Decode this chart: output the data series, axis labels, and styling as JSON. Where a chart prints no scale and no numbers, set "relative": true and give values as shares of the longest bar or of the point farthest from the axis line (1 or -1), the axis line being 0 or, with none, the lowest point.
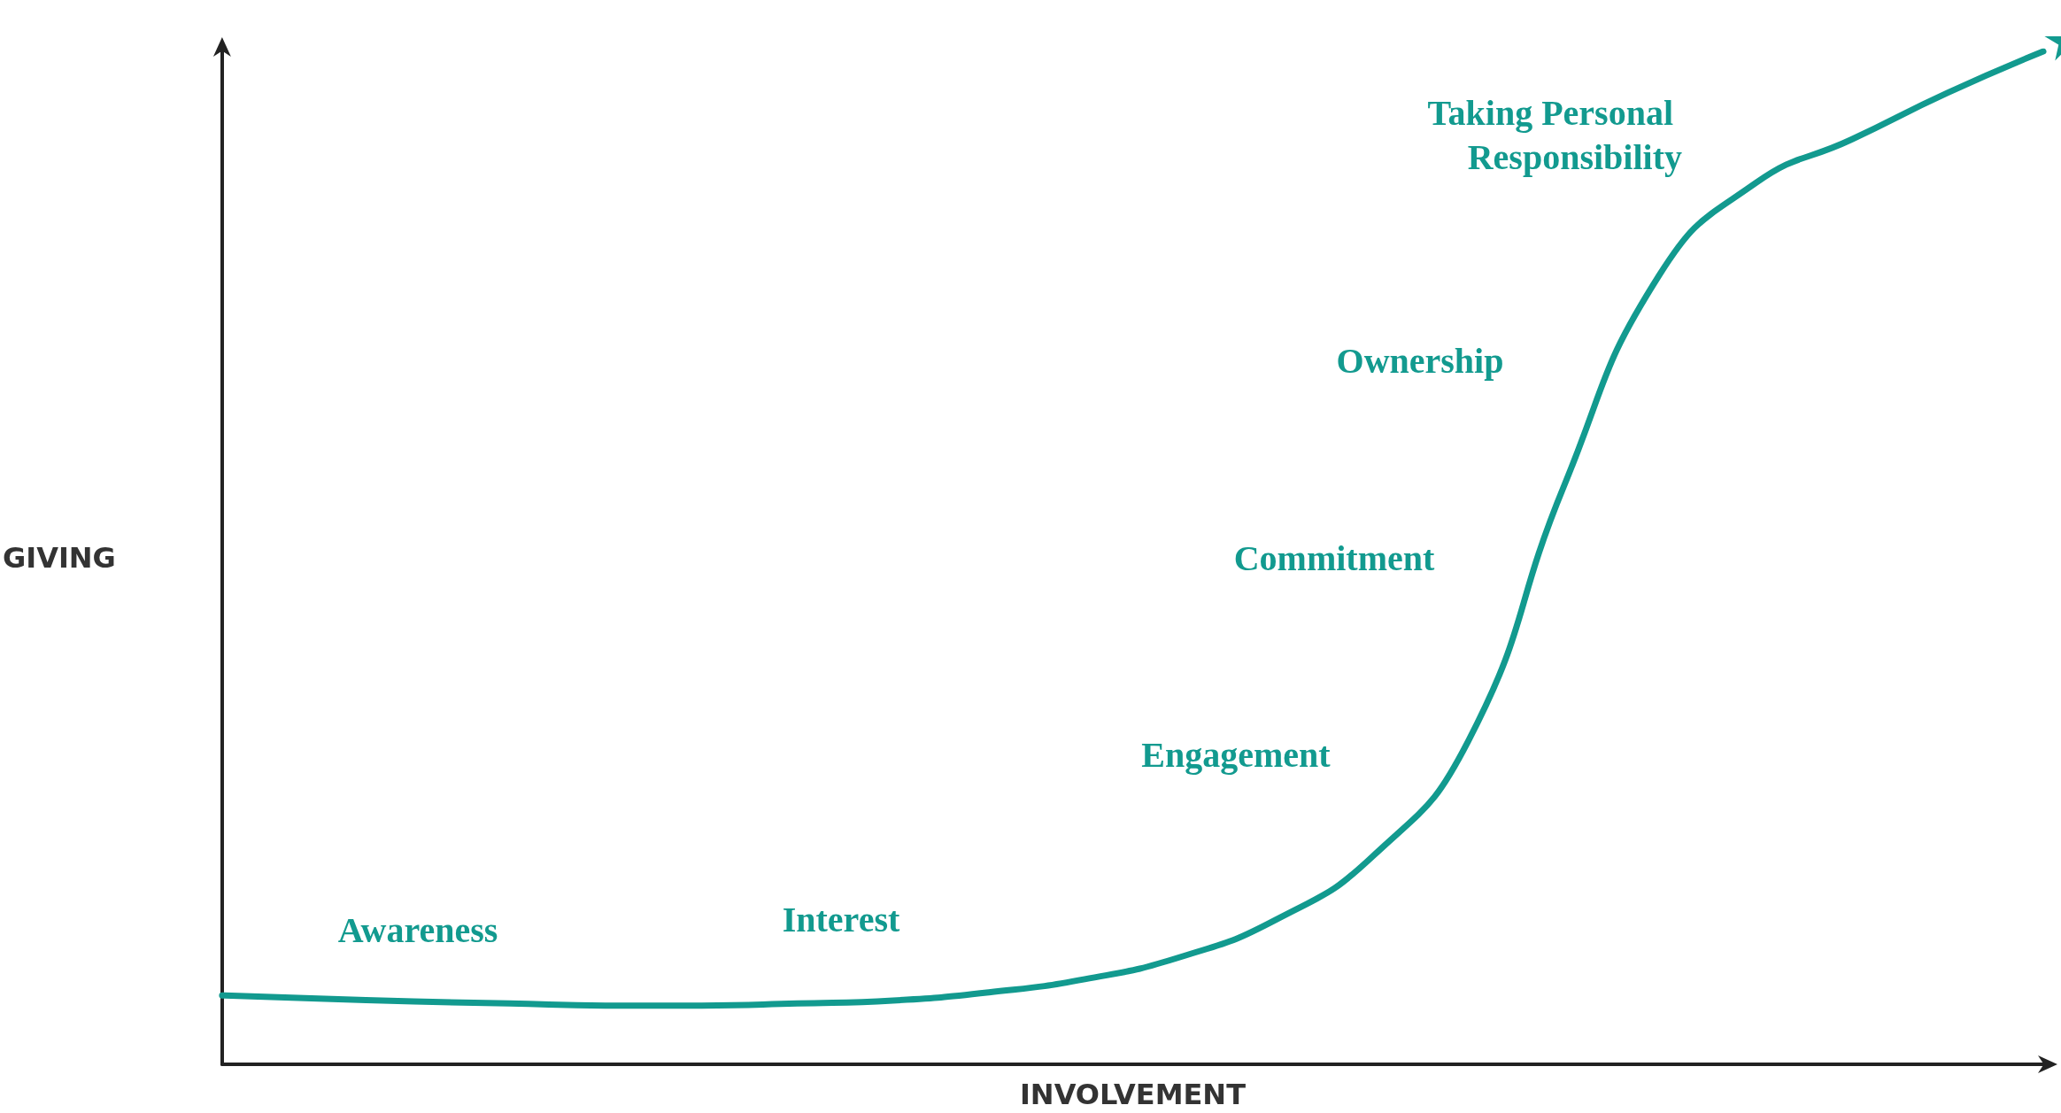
{
  "chart_data": {
    "type": "line",
    "relative": true,
    "xlabel": "INVOLVEMENT",
    "ylabel": "GIVING",
    "categories": [
      null,
      null,
      null,
      null,
      null,
      null,
      null,
      null,
      null,
      null,
      null,
      null,
      null,
      null,
      null,
      null,
      null,
      null,
      null,
      null
    ],
    "series": [
      {
        "color": "#129a8f",
        "values": [
          0.068,
          0.065,
          0.062,
          0.06,
          0.058,
          0.058,
          0.06,
          0.063,
          0.071,
          0.084,
          0.106,
          0.143,
          0.205,
          0.319,
          0.571,
          0.78,
          0.87,
          0.913,
          0.959,
          1
        ]
      }
    ],
    "annotations": [
      "Awareness",
      "Interest",
      "Engagement",
      "Commitment",
      "Ownership",
      "Taking Personal Responsibility"
    ],
    "marker": "none"
  }
}
